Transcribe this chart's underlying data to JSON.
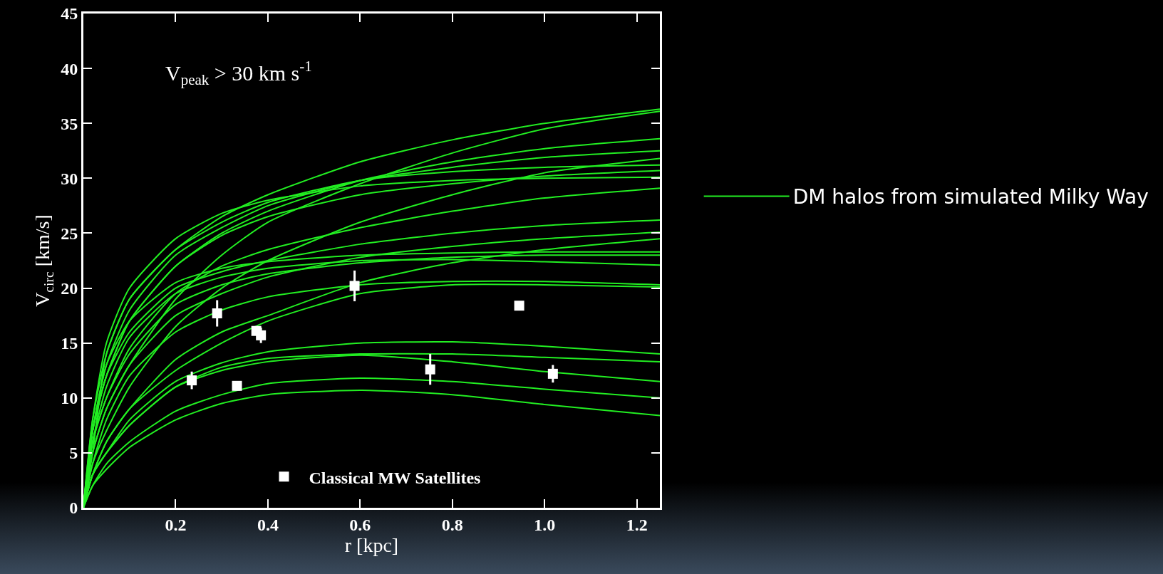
{
  "chart_data": {
    "type": "line",
    "xlabel": "r [kpc]",
    "ylabel": "V$_{circ}$ [km/s]",
    "annotations": [
      "V$_{peak}$ > 30 km s$^{-1}$"
    ],
    "x": [
      0,
      0.02,
      0.05,
      0.1,
      0.2,
      0.3,
      0.4,
      0.6,
      0.8,
      1.0,
      1.25
    ],
    "xlim": [
      0,
      1.25
    ],
    "xticks": [
      0.2,
      0.4,
      0.6,
      0.8,
      {
        "value": 1,
        "label": "1.0"
      },
      1.2
    ],
    "ylim": [
      0,
      45
    ],
    "yticks": [
      0,
      5,
      10,
      15,
      20,
      25,
      30,
      35,
      40,
      45
    ],
    "grid": false,
    "legend": "bottom",
    "line_style": "solid",
    "marker": "none",
    "series": [
      {
        "name": "DM halos from simulated Milky Way",
        "color": "#22ee22",
        "values": [
          0,
          5,
          14,
          19,
          23.5,
          26.5,
          28.5,
          31.5,
          33.5,
          35,
          36.3
        ]
      },
      {
        "color": "#22ee22",
        "values": [
          0,
          5,
          9,
          13,
          19,
          23,
          26,
          29.5,
          32.3,
          34.5,
          36.1
        ]
      },
      {
        "color": "#22ee22",
        "values": [
          0,
          7,
          12,
          17,
          22,
          25,
          27,
          29.8,
          31.5,
          32.7,
          33.6
        ]
      },
      {
        "color": "#22ee22",
        "values": [
          0,
          7,
          13,
          18,
          23,
          25.5,
          27.5,
          29.8,
          31,
          31.9,
          32.5
        ]
      },
      {
        "color": "#22ee22",
        "values": [
          0,
          4,
          7,
          11,
          16.5,
          20,
          22.5,
          26,
          28.5,
          30.5,
          31.8
        ]
      },
      {
        "color": "#22ee22",
        "values": [
          0,
          8,
          14,
          19,
          23.5,
          26,
          27.8,
          29.8,
          30.6,
          31,
          31.2
        ]
      },
      {
        "color": "#22ee22",
        "values": [
          0,
          7,
          12,
          17,
          22,
          24.8,
          26.5,
          28.5,
          29.5,
          30.2,
          30.7
        ]
      },
      {
        "color": "#22ee22",
        "values": [
          0,
          8,
          15,
          20,
          24.5,
          26.8,
          28,
          29.3,
          29.8,
          30,
          30.1
        ]
      },
      {
        "color": "#22ee22",
        "values": [
          0,
          6,
          10,
          14.5,
          19.5,
          22,
          23.5,
          25.5,
          27,
          28.2,
          29.1
        ]
      },
      {
        "color": "#22ee22",
        "values": [
          0,
          7,
          12,
          16,
          20,
          21.5,
          22.5,
          24,
          25,
          25.7,
          26.2
        ]
      },
      {
        "color": "#22ee22",
        "values": [
          0,
          5,
          9,
          13,
          17.5,
          19.5,
          21,
          22.8,
          23.8,
          24.5,
          25.1
        ]
      },
      {
        "color": "#22ee22",
        "values": [
          0,
          3,
          6,
          9,
          13.5,
          16,
          17.5,
          20.5,
          22.3,
          23.5,
          24.5
        ]
      },
      {
        "color": "#22ee22",
        "values": [
          0,
          7,
          13,
          17,
          20.5,
          21.8,
          22.4,
          23,
          23.2,
          23.3,
          23.3
        ]
      },
      {
        "color": "#22ee22",
        "values": [
          0,
          6,
          10,
          14,
          18.5,
          20.3,
          21.3,
          22.3,
          22.8,
          23,
          23
        ]
      },
      {
        "color": "#22ee22",
        "values": [
          0,
          6,
          11,
          15.5,
          19.5,
          21,
          21.8,
          22.5,
          22.6,
          22.4,
          22.1
        ]
      },
      {
        "color": "#22ee22",
        "values": [
          0,
          4,
          8,
          12,
          16,
          18,
          19.2,
          20.3,
          20.6,
          20.6,
          20.3
        ]
      },
      {
        "color": "#22ee22",
        "values": [
          0,
          3,
          6,
          9,
          12.5,
          15,
          17,
          19.5,
          20.3,
          20.3,
          20.1
        ]
      },
      {
        "color": "#22ee22",
        "values": [
          0,
          3,
          5,
          8,
          11.5,
          13.2,
          14.2,
          15,
          15.1,
          14.7,
          14
        ]
      },
      {
        "color": "#22ee22",
        "values": [
          0,
          3,
          5,
          7.5,
          11,
          12.8,
          13.6,
          14,
          14,
          13.7,
          13.3
        ]
      },
      {
        "color": "#22ee22",
        "values": [
          0,
          3,
          5,
          7.5,
          11,
          12.5,
          13.3,
          13.9,
          13.3,
          12.4,
          11.5
        ]
      },
      {
        "color": "#22ee22",
        "values": [
          0,
          2,
          4,
          6,
          8.8,
          10.3,
          11.3,
          11.8,
          11.5,
          10.8,
          10
        ]
      },
      {
        "color": "#22ee22",
        "values": [
          0,
          2,
          3.5,
          5.5,
          8,
          9.5,
          10.3,
          10.7,
          10.3,
          9.4,
          8.4
        ]
      },
      {
        "type": "scatter",
        "name": "Classical MW Satellites",
        "color": "#ffffff",
        "marker": "square",
        "x": [
          0.235,
          0.29,
          0.333,
          0.375,
          0.385,
          0.588,
          0.752,
          0.945,
          1.018
        ],
        "values": [
          11.6,
          17.7,
          11.1,
          16.1,
          15.7,
          20.2,
          12.6,
          18.4,
          12.2
        ],
        "errors": [
          0.8,
          1.2,
          null,
          null,
          0.7,
          1.4,
          1.4,
          null,
          0.8
        ]
      }
    ]
  }
}
